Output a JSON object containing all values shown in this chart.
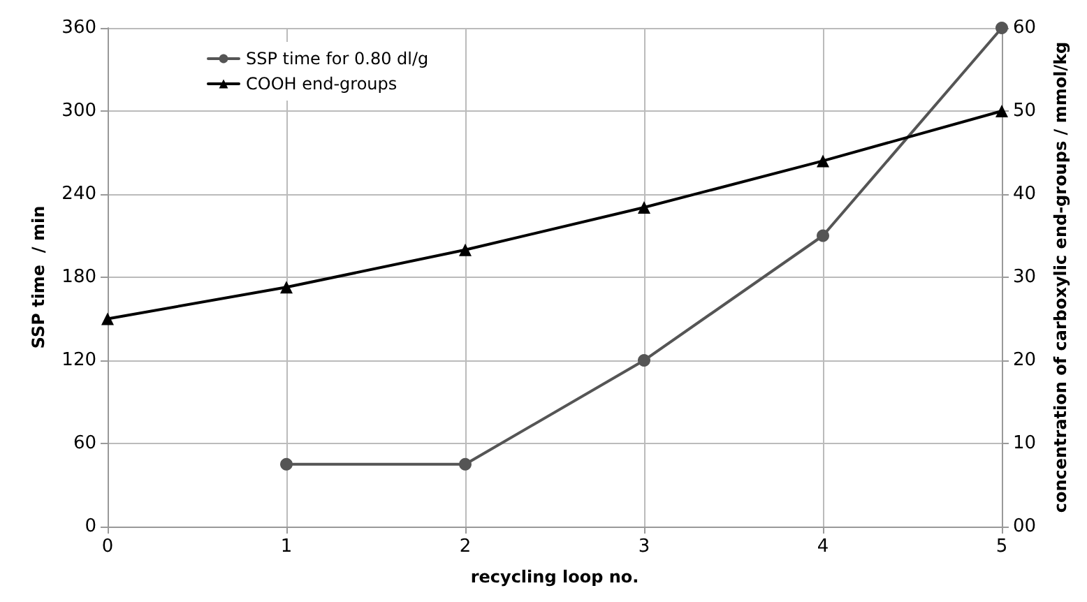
{
  "chart_data": {
    "type": "line",
    "xlabel": "recycling loop no.",
    "ylabel": "SSP time  / min",
    "y2label": "concentration of carboxylic end-groups / mmol/kg",
    "x": [
      0,
      1,
      2,
      3,
      4,
      5
    ],
    "xlim": [
      0,
      5
    ],
    "xticks": [
      0,
      1,
      2,
      3,
      4,
      5
    ],
    "ylim": [
      0,
      360
    ],
    "yticks": [
      0,
      60,
      120,
      180,
      240,
      300,
      360
    ],
    "y2lim": [
      0,
      60
    ],
    "y2ticks": [
      {
        "value": 0,
        "label": "00"
      },
      10,
      20,
      30,
      40,
      50,
      60
    ],
    "grid": true,
    "legend": "top left",
    "series": [
      {
        "name": "SSP time for 0.80 dl/g",
        "color": "#555555",
        "marker": "circle",
        "values": [
          null,
          45,
          45,
          120,
          210,
          360
        ]
      },
      {
        "name": "COOH end-groups",
        "color": "#000000",
        "marker": "triangle",
        "axis": "y2",
        "values": [
          25,
          28.8,
          33.3,
          38.4,
          44,
          50
        ]
      }
    ]
  }
}
